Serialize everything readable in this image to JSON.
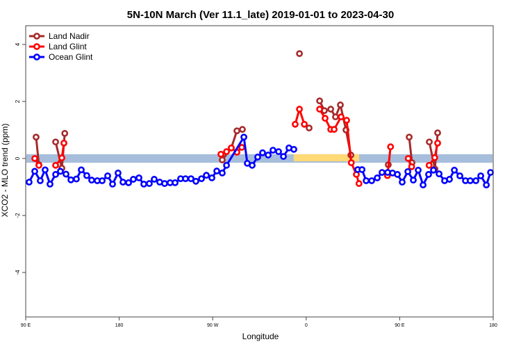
{
  "chart_data": {
    "type": "line",
    "title": "5N-10N March (Ver 11.1_late)   2019-01-01 to 2023-04-30",
    "xlabel": "Longitude",
    "ylabel": "XCO2 - MLO trend (ppm)",
    "xlim_continuous_lon_east": [
      90,
      540
    ],
    "ylim": [
      -4.6,
      4.6
    ],
    "x_ticks": [
      {
        "lon": 90,
        "label": "90 E"
      },
      {
        "lon": 180,
        "label": "180"
      },
      {
        "lon": 270,
        "label": "90 W"
      },
      {
        "lon": 360,
        "label": "0"
      },
      {
        "lon": 450,
        "label": "90 E"
      },
      {
        "lon": 540,
        "label": "180"
      }
    ],
    "y_ticks": [
      -4,
      -2,
      0,
      2,
      4
    ],
    "band": {
      "low": -0.15,
      "high": 0.15,
      "color": "#a6bddb"
    },
    "yellow_patches": [
      [
        318,
        300
      ],
      [
        348,
        411
      ]
    ],
    "legend_position": "top-left",
    "series": [
      {
        "name": "Land Nadir",
        "color": "#a52a2a",
        "segments": [
          [
            [
              100,
              0.75
            ],
            [
              102.7,
              -0.22
            ]
          ],
          [
            [
              118.8,
              0.58
            ],
            [
              124.8,
              -0.34
            ],
            [
              127.6,
              0.88
            ]
          ],
          [
            [
              279.2,
              -0.05
            ],
            [
              287.9,
              0.37
            ],
            [
              293.3,
              0.97
            ],
            [
              298.6,
              1.02
            ]
          ],
          [
            [
              353.5,
              3.68
            ]
          ],
          [
            [
              362.8,
              1.07
            ]
          ],
          [
            [
              372.9,
              2.02
            ],
            [
              377.5,
              1.68
            ],
            [
              383.6,
              1.73
            ],
            [
              388.2,
              1.46
            ],
            [
              392.9,
              1.88
            ],
            [
              398.3,
              1.0
            ],
            [
              403,
              0.12
            ]
          ],
          [
            [
              439,
              -0.22
            ]
          ],
          [
            [
              459.1,
              0.75
            ],
            [
              461.8,
              -0.15
            ]
          ],
          [
            [
              478.5,
              0.58
            ],
            [
              483.9,
              -0.37
            ],
            [
              486.5,
              0.9
            ]
          ]
        ]
      },
      {
        "name": "Land Glint",
        "color": "#ff0000",
        "segments": [
          [
            [
              98.7,
              0.0
            ],
            [
              102.7,
              -0.24
            ]
          ],
          [
            [
              118.8,
              -0.24
            ],
            [
              124.8,
              0.02
            ],
            [
              126.8,
              0.54
            ]
          ],
          [
            [
              277.9,
              0.15
            ],
            [
              283.3,
              0.24
            ],
            [
              287.9,
              0.37
            ],
            [
              293.3,
              0.22
            ],
            [
              298,
              0.39
            ]
          ],
          [
            [
              349.4,
              1.2
            ],
            [
              353.5,
              1.73
            ],
            [
              358.2,
              1.2
            ]
          ],
          [
            [
              372.9,
              1.73
            ],
            [
              378.2,
              1.41
            ],
            [
              383.6,
              1.02
            ],
            [
              386.9,
              1.02
            ],
            [
              393.6,
              1.46
            ],
            [
              398.9,
              1.34
            ],
            [
              403.4,
              -0.15
            ],
            [
              408.3,
              -0.56
            ],
            [
              410.8,
              -0.88
            ]
          ],
          [
            [
              438.2,
              -0.6
            ],
            [
              441.2,
              0.41
            ]
          ],
          [
            [
              458.2,
              0.0
            ],
            [
              461.5,
              -0.29
            ]
          ],
          [
            [
              478.3,
              -0.24
            ],
            [
              483.7,
              0.03
            ],
            [
              486.5,
              0.54
            ]
          ]
        ]
      },
      {
        "name": "Ocean Glint",
        "color": "#0000ff",
        "segments": [
          [
            [
              93.3,
              -0.83
            ],
            [
              98.7,
              -0.45
            ],
            [
              104,
              -0.78
            ],
            [
              108.7,
              -0.4
            ],
            [
              113.4,
              -0.9
            ],
            [
              118.8,
              -0.56
            ],
            [
              123.4,
              -0.45
            ],
            [
              128.8,
              -0.55
            ],
            [
              133.5,
              -0.75
            ],
            [
              138.8,
              -0.72
            ],
            [
              143.5,
              -0.4
            ],
            [
              148.8,
              -0.6
            ],
            [
              153.5,
              -0.76
            ],
            [
              158.9,
              -0.78
            ],
            [
              163.6,
              -0.78
            ],
            [
              168.9,
              -0.61
            ],
            [
              173.6,
              -0.9
            ],
            [
              178.9,
              -0.51
            ],
            [
              183.6,
              -0.83
            ],
            [
              189,
              -0.85
            ],
            [
              193.6,
              -0.73
            ],
            [
              199,
              -0.68
            ],
            [
              203.7,
              -0.9
            ],
            [
              209,
              -0.88
            ],
            [
              213.7,
              -0.73
            ],
            [
              219,
              -0.83
            ],
            [
              223.7,
              -0.88
            ],
            [
              229,
              -0.85
            ],
            [
              233.8,
              -0.85
            ],
            [
              239.1,
              -0.71
            ],
            [
              243.8,
              -0.71
            ],
            [
              249.1,
              -0.71
            ],
            [
              253.8,
              -0.8
            ],
            [
              259.2,
              -0.71
            ],
            [
              263.9,
              -0.59
            ],
            [
              269.2,
              -0.68
            ],
            [
              273.9,
              -0.44
            ],
            [
              279.2,
              -0.51
            ],
            [
              283.3,
              -0.24
            ],
            [
              300,
              0.75
            ],
            [
              303.3,
              -0.17
            ],
            [
              308,
              -0.24
            ],
            [
              313.3,
              0.05
            ],
            [
              318,
              0.2
            ],
            [
              323.4,
              0.12
            ],
            [
              328,
              0.29
            ],
            [
              333.4,
              0.24
            ],
            [
              338.1,
              0.07
            ],
            [
              343.4,
              0.37
            ],
            [
              348.1,
              0.32
            ]
          ],
          [
            [
              409.6,
              -0.39
            ],
            [
              413.7,
              -0.39
            ],
            [
              417.7,
              -0.78
            ],
            [
              423,
              -0.78
            ],
            [
              428.4,
              -0.68
            ],
            [
              433,
              -0.49
            ],
            [
              438.4,
              -0.49
            ],
            [
              443.1,
              -0.51
            ],
            [
              447.8,
              -0.56
            ],
            [
              452.4,
              -0.83
            ],
            [
              457.8,
              -0.46
            ],
            [
              463.1,
              -0.76
            ],
            [
              467.8,
              -0.41
            ],
            [
              472.5,
              -0.93
            ],
            [
              477.8,
              -0.56
            ],
            [
              482.5,
              -0.41
            ],
            [
              487.9,
              -0.54
            ],
            [
              493.2,
              -0.78
            ],
            [
              497.9,
              -0.73
            ],
            [
              502.6,
              -0.41
            ],
            [
              507.9,
              -0.61
            ],
            [
              513.3,
              -0.78
            ],
            [
              517.9,
              -0.78
            ],
            [
              523.3,
              -0.78
            ],
            [
              528,
              -0.61
            ],
            [
              533.4,
              -0.93
            ],
            [
              537.4,
              -0.49
            ]
          ]
        ]
      }
    ]
  }
}
